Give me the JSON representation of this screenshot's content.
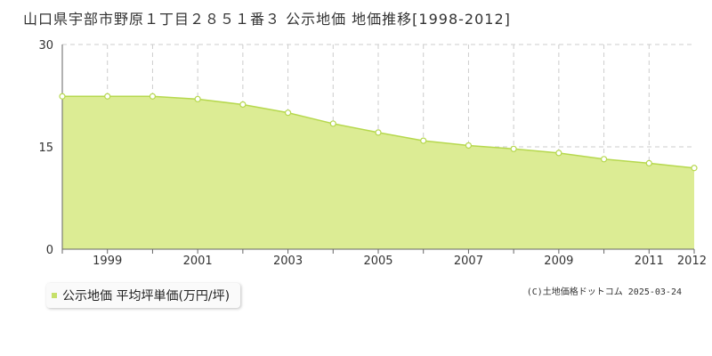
{
  "title": "山口県宇部市野原１丁目２８５１番３ 公示地価 地価推移[1998-2012]",
  "legend": {
    "label": "公示地価 平均坪単価(万円/坪)"
  },
  "copyright": "(C)土地価格ドットコム 2025-03-24",
  "colors": {
    "fill": "#dcec94",
    "line": "#b6d84e",
    "grid": "#cccccc",
    "axis": "#666666"
  },
  "chart_data": {
    "type": "area",
    "x": [
      1998,
      1999,
      2000,
      2001,
      2002,
      2003,
      2004,
      2005,
      2006,
      2007,
      2008,
      2009,
      2010,
      2011,
      2012
    ],
    "series": [
      {
        "name": "公示地価 平均坪単価(万円/坪)",
        "values": [
          22.4,
          22.4,
          22.4,
          22.0,
          21.2,
          20.0,
          18.4,
          17.1,
          15.9,
          15.2,
          14.7,
          14.1,
          13.2,
          12.6,
          11.9
        ]
      }
    ],
    "ylim": [
      0,
      30
    ],
    "yticks": [
      "0",
      "15",
      "30"
    ],
    "xtick_labels": [
      "1999",
      "2001",
      "2003",
      "2005",
      "2007",
      "2009",
      "2011",
      "2012"
    ],
    "grid": true
  }
}
